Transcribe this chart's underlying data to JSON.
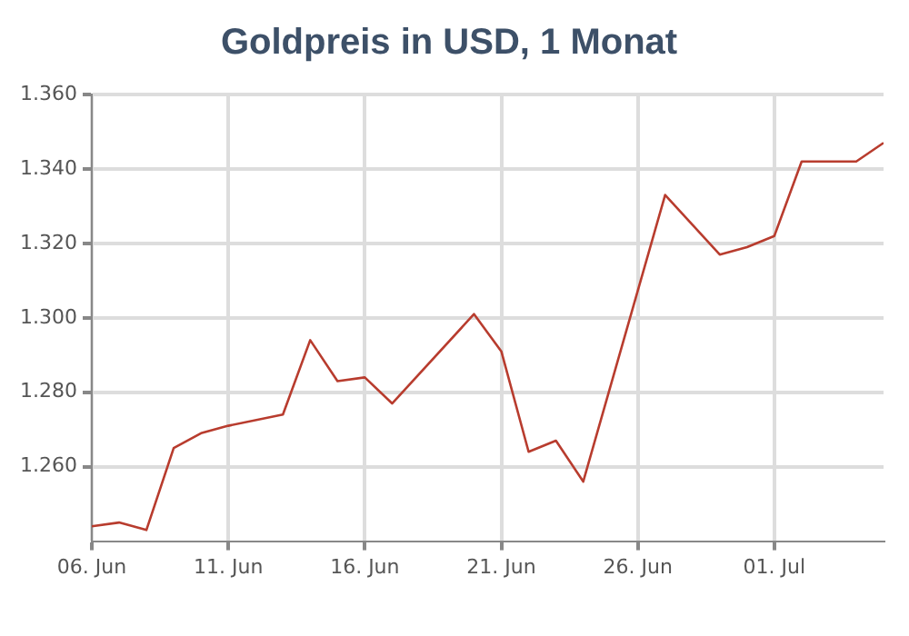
{
  "chart_data": {
    "type": "line",
    "title": "Goldpreis in USD, 1 Monat",
    "x": [
      "--06-06",
      "--06-07",
      "--06-08",
      "--06-09",
      "--06-10",
      "--06-11",
      "--06-13",
      "--06-14",
      "--06-15",
      "--06-16",
      "--06-17",
      "--06-20",
      "--06-21",
      "--06-22",
      "--06-23",
      "--06-24",
      "--06-27",
      "--06-28",
      "--06-29",
      "--06-30",
      "--07-01",
      "--07-02",
      "--07-04",
      "--07-05"
    ],
    "series": [
      {
        "color": "#b83c2e",
        "values": [
          1244,
          1245,
          1243,
          1265,
          1269,
          1271,
          1274,
          1294,
          1283,
          1284,
          1277,
          1301,
          1291,
          1264,
          1267,
          1256,
          1333,
          1325,
          1317,
          1319,
          1322,
          1342,
          1342,
          1347
        ]
      }
    ],
    "xlim": [
      "--06-06",
      "--07-05"
    ],
    "xticks": [
      {
        "value": "--06-06",
        "label": "06. Jun"
      },
      {
        "value": "--06-11",
        "label": "11. Jun"
      },
      {
        "value": "--06-16",
        "label": "16. Jun"
      },
      {
        "value": "--06-21",
        "label": "21. Jun"
      },
      {
        "value": "--06-26",
        "label": "26. Jun"
      },
      {
        "value": "--07-01",
        "label": "01. Jul"
      }
    ],
    "ylim": [
      1240,
      1360
    ],
    "yticks": [
      {
        "value": 1260,
        "label": "1.260"
      },
      {
        "value": 1280,
        "label": "1.280"
      },
      {
        "value": 1300,
        "label": "1.300"
      },
      {
        "value": 1320,
        "label": "1.320"
      },
      {
        "value": 1340,
        "label": "1.340"
      },
      {
        "value": 1360,
        "label": "1.360"
      }
    ],
    "grid": true,
    "marker": "none",
    "line_style": "solid"
  }
}
